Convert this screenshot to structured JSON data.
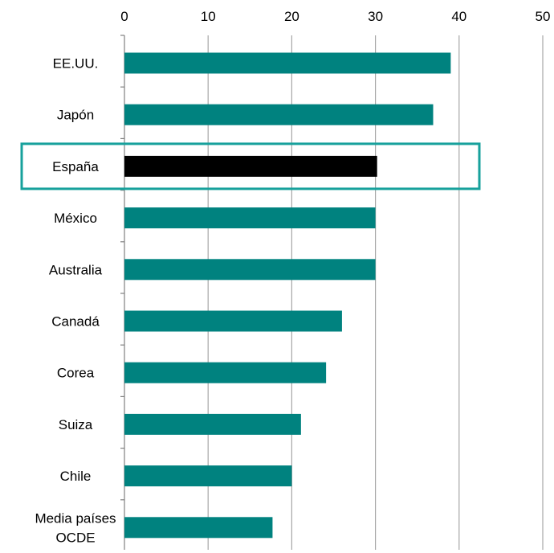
{
  "chart_data": {
    "type": "bar",
    "orientation": "horizontal",
    "categories": [
      "EE.UU.",
      "Japón",
      "España",
      "México",
      "Australia",
      "Canadá",
      "Corea",
      "Suiza",
      "Chile",
      "Media países OCDE"
    ],
    "category_lines": [
      [
        "EE.UU."
      ],
      [
        "Japón"
      ],
      [
        "España"
      ],
      [
        "México"
      ],
      [
        "Australia"
      ],
      [
        "Canadá"
      ],
      [
        "Corea"
      ],
      [
        "Suiza"
      ],
      [
        "Chile"
      ],
      [
        "Media países",
        "OCDE"
      ]
    ],
    "values": [
      39,
      36.9,
      30.2,
      30,
      30,
      26,
      24.1,
      21.1,
      20,
      17.7
    ],
    "xlim": [
      0,
      50
    ],
    "xticks": [
      0,
      10,
      20,
      30,
      40,
      50
    ],
    "x_axis_position": "top",
    "grid": "vertical",
    "highlight_category": "España",
    "title": "",
    "xlabel": "",
    "ylabel": ""
  },
  "colors": {
    "bar": "#00827F",
    "highlight_bar": "#000000",
    "highlight_box": "#17A19C",
    "grid": "#A6A6A6",
    "axis": "#808080"
  }
}
